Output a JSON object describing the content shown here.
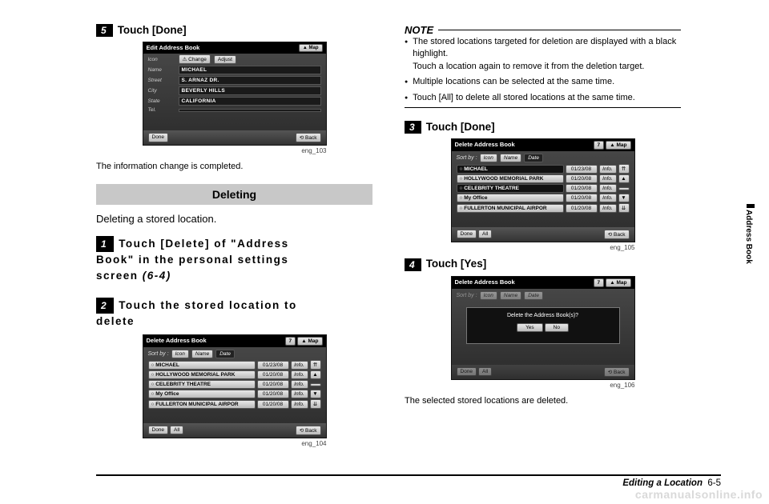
{
  "left": {
    "step5": {
      "num": "5",
      "text": "Touch [Done]"
    },
    "edit_screen": {
      "title": "Edit Address Book",
      "map": "Map",
      "rows": [
        {
          "lbl": "Icon",
          "btn1": "⚠ Change",
          "btn2": "Adjust"
        },
        {
          "lbl": "Name",
          "val": "MICHAEL"
        },
        {
          "lbl": "Street",
          "val": "S. ARNAZ DR."
        },
        {
          "lbl": "City",
          "val": "BEVERLY HILLS"
        },
        {
          "lbl": "State",
          "val": "CALIFORNIA"
        },
        {
          "lbl": "Tel.",
          "val": ""
        }
      ],
      "done": "Done",
      "back": "Back"
    },
    "cap103": "eng_103",
    "completed": "The information change is completed.",
    "deleting_hd": "Deleting",
    "deleting_lead": "Deleting a stored location.",
    "step1": {
      "num": "1",
      "l1": "Touch [Delete] of \"Address",
      "l2": "Book\" in the personal settings",
      "l3": "screen",
      "ref": " (6-4)"
    },
    "step2": {
      "num": "2",
      "l1": "Touch the stored location to",
      "l2": "delete"
    },
    "list_screen": {
      "title": "Delete Address Book",
      "count": "7",
      "map": "Map",
      "sort": "Sort by :",
      "tabs": [
        "Icon",
        "Name",
        "Date"
      ],
      "rows": [
        {
          "n": "MICHAEL",
          "d": "01/23/08"
        },
        {
          "n": "HOLLYWOOD MEMORIAL PARK",
          "d": "01/20/08"
        },
        {
          "n": "CELEBRITY THEATRE",
          "d": "01/20/08"
        },
        {
          "n": "My Office",
          "d": "01/20/08"
        },
        {
          "n": "FULLERTON MUNICIPAL AIRPOR",
          "d": "01/20/08"
        }
      ],
      "done": "Done",
      "all": "All",
      "back": "Back"
    },
    "cap104": "eng_104"
  },
  "right": {
    "note_hd": "NOTE",
    "notes": [
      "The stored locations targeted for deletion are displayed with a black highlight.\nTouch a location again to remove it from the deletion target.",
      "Multiple locations can be selected at the same time.",
      "Touch [All] to delete all stored locations at the same time."
    ],
    "step3": {
      "num": "3",
      "text": "Touch [Done]"
    },
    "list_screen": {
      "title": "Delete Address Book",
      "count": "7",
      "map": "Map",
      "sort": "Sort by :",
      "tabs": [
        "Icon",
        "Name",
        "Date"
      ],
      "rows": [
        {
          "n": "MICHAEL",
          "d": "01/23/08",
          "hl": true
        },
        {
          "n": "HOLLYWOOD MEMORIAL PARK",
          "d": "01/20/08"
        },
        {
          "n": "CELEBRITY THEATRE",
          "d": "01/20/08",
          "hl": true
        },
        {
          "n": "My Office",
          "d": "01/20/08"
        },
        {
          "n": "FULLERTON MUNICIPAL AIRPOR",
          "d": "01/20/08"
        }
      ],
      "done": "Done",
      "all": "All",
      "back": "Back"
    },
    "cap105": "eng_105",
    "step4": {
      "num": "4",
      "text": "Touch [Yes]"
    },
    "dialog_screen": {
      "title": "Delete Address Book",
      "count": "7",
      "map": "Map",
      "msg": "Delete the Address Book(s)?",
      "yes": "Yes",
      "no": "No",
      "done": "Done",
      "all": "All",
      "back": "Back"
    },
    "cap106": "eng_106",
    "done_text": "The selected stored locations are deleted."
  },
  "side_label": "Address Book",
  "footer": {
    "title": "Editing a Location",
    "page": "6-5"
  },
  "watermark": "carmanualsonline.info"
}
